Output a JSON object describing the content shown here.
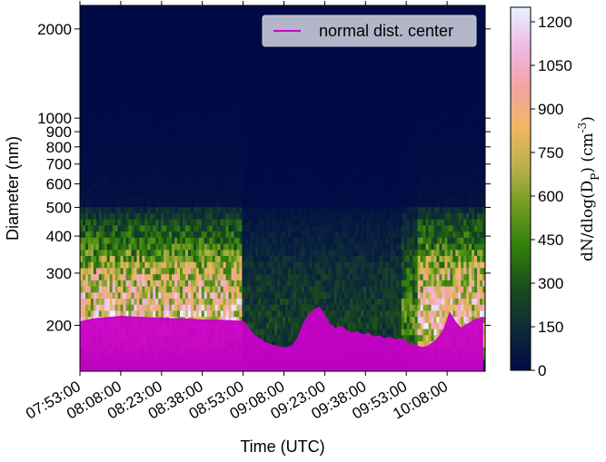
{
  "chart_data": {
    "type": "heatmap",
    "title": "",
    "xlabel": "Time (UTC)",
    "ylabel": "Diameter (nm)",
    "x_ticks": [
      "07:53:00",
      "08:08:00",
      "08:23:00",
      "08:38:00",
      "08:53:00",
      "09:08:00",
      "09:23:00",
      "09:38:00",
      "09:53:00",
      "10:08:00"
    ],
    "x_range_minutes": [
      0,
      149
    ],
    "y_scale": "log",
    "y_range": [
      140,
      2400
    ],
    "y_ticks": [
      200,
      300,
      400,
      500,
      600,
      700,
      800,
      900,
      1000,
      2000
    ],
    "y_tick_labels": [
      "200",
      "300",
      "400",
      "500",
      "600",
      "700",
      "800",
      "900",
      "1000",
      "2000"
    ],
    "colorbar": {
      "label_main": "dN/dlog(D",
      "label_sub": "P",
      "label_tail": ") (cm",
      "label_sup": "-3",
      "label_end": ")",
      "ticks": [
        "0",
        "150",
        "300",
        "450",
        "600",
        "750",
        "900",
        "1050",
        "1200"
      ],
      "range": [
        0,
        1250
      ],
      "colormap": [
        "#000a46",
        "#0d2a3a",
        "#1a4a1f",
        "#2f7d0c",
        "#6b9a1e",
        "#b6b04a",
        "#f0b860",
        "#f1a4a0",
        "#f0b8e4",
        "#e8f4ff"
      ]
    },
    "series": [
      {
        "name": "normal dist. center",
        "color": "#c800c8",
        "time_min": [
          0,
          5,
          10,
          15,
          20,
          25,
          30,
          35,
          40,
          45,
          50,
          55,
          60,
          62,
          64,
          66,
          68,
          70,
          72,
          74,
          76,
          78,
          80,
          82,
          84,
          86,
          88,
          90,
          92,
          94,
          96,
          98,
          100,
          102,
          104,
          106,
          108,
          110,
          112,
          114,
          116,
          118,
          120,
          122,
          124,
          126,
          128,
          130,
          132,
          134,
          136,
          138,
          140,
          142,
          144,
          146,
          148
        ],
        "diameter_nm": [
          205,
          210,
          212,
          214,
          213,
          212,
          211,
          210,
          210,
          208,
          208,
          207,
          206,
          195,
          185,
          180,
          175,
          172,
          170,
          168,
          168,
          170,
          180,
          200,
          215,
          225,
          230,
          215,
          200,
          195,
          198,
          192,
          188,
          190,
          185,
          188,
          182,
          184,
          180,
          182,
          178,
          180,
          175,
          172,
          170,
          168,
          170,
          175,
          182,
          195,
          220,
          205,
          195,
          200,
          205,
          210,
          212
        ]
      }
    ],
    "legend": {
      "location": "top-right",
      "entries": [
        "normal dist. center"
      ]
    },
    "heatmap_profile": {
      "description_of_bands": "diameter-dependent concentration",
      "band_centers_nm": [
        180,
        220,
        270,
        330,
        430
      ],
      "band_levels": [
        600,
        550,
        500,
        400,
        250
      ],
      "dip_periods_min": [
        [
          60,
          118
        ]
      ],
      "dip_factor": 0.25
    }
  }
}
